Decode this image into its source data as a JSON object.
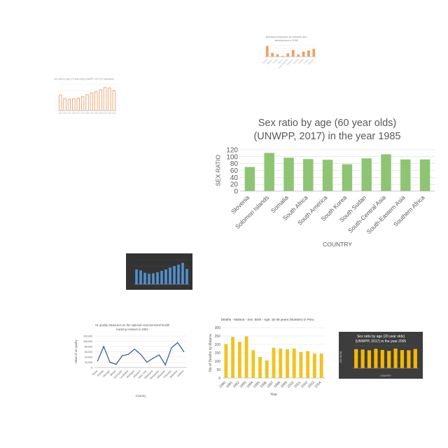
{
  "chart_data": [
    {
      "id": "main",
      "type": "bar",
      "title_lines": [
        "Sex ratio by age (60 year olds)",
        "(UNWPP, 2017) in the year 1985"
      ],
      "xlabel": "COUNTRY",
      "ylabel": "SEX RATIO",
      "ylim": [
        0,
        120
      ],
      "yticks": [
        "0",
        "20",
        "40",
        "60",
        "80",
        "100",
        "120"
      ],
      "grid": true,
      "bar_color": "#8dc572",
      "categories": [
        "Slovenia",
        "Solomon Islands",
        "Somalia",
        "South Africa",
        "South America",
        "South Korea",
        "South Sudan",
        "South-Central Asia",
        "South-Eastern Asia",
        "Southern Africa"
      ],
      "values": [
        70,
        111,
        97,
        93,
        91,
        78,
        95,
        107,
        92,
        92
      ]
    },
    {
      "id": "top-small",
      "type": "bar",
      "title_lines": [
        "Business enterprise on research and",
        "development in 2008"
      ],
      "bar_color": "#f0a060",
      "categories": [
        "Austria",
        "Belgium",
        "Croatia",
        "Cyprus",
        "Czech Republic",
        "Denmark",
        "Estonia",
        "Finland",
        "France",
        "Germany"
      ],
      "values": [
        95,
        35,
        22,
        8,
        30,
        60,
        20,
        45,
        55,
        70
      ],
      "ylim": [
        0,
        100
      ]
    },
    {
      "id": "left-small",
      "type": "bar",
      "title_lines": [
        "Sex ratio by age (70 year olds) (UNWPP, 2017) in Mauritania"
      ],
      "bar_color": "#ffffff",
      "bar_stroke": "#e8965a",
      "categories": [
        "1950",
        "1955",
        "1960",
        "1965",
        "1970",
        "1975",
        "1980",
        "1985",
        "1990",
        "1995",
        "2000",
        "2005",
        "2010"
      ],
      "values": [
        82,
        63,
        60,
        62,
        66,
        74,
        84,
        93,
        100,
        110,
        122,
        119,
        105
      ],
      "ylim": [
        0,
        140
      ]
    },
    {
      "id": "blue-dark",
      "type": "bar",
      "bar_color": "#4f90d0",
      "values": [
        62,
        58,
        48,
        44,
        46,
        50,
        56,
        62,
        70,
        76,
        82,
        90,
        64
      ],
      "ylim": [
        0,
        100
      ]
    },
    {
      "id": "air-quality",
      "type": "line",
      "title_lines": [
        "Air quality Measures on the national environmental health",
        "tracking network in 2004"
      ],
      "xlabel": "Country",
      "ylabel": "Value of air quality",
      "line_color": "#2f5597",
      "ylim": [
        0,
        120000
      ],
      "yticks": [
        "0",
        "20,000",
        "40,000",
        "60,000",
        "80,000",
        "100,000",
        "120,000"
      ],
      "categories": [
        "Texas",
        "Florida",
        "Georgia",
        "Illinois",
        "Kentucky",
        "Louisiana",
        "Michigan",
        "Missouri",
        "New York",
        "Oklahoma",
        "Tennessee",
        "Arkansas",
        "Colorado",
        "Alabama",
        "Indiana"
      ],
      "values": [
        25000,
        80000,
        20000,
        12000,
        45000,
        50000,
        70000,
        50000,
        20000,
        35000,
        48000,
        10000,
        75000,
        95000,
        60000
      ]
    },
    {
      "id": "malaria",
      "type": "bar",
      "title_lines": [
        "Deaths - Malaria - Sex: Both - Age: 15-49 years (Number) in Peru"
      ],
      "xlabel": "Year",
      "ylabel": "No of Deaths by Malaria",
      "bar_color": "#f2c31f",
      "ylim": [
        0,
        300
      ],
      "yticks": [
        "0",
        "50",
        "100",
        "150",
        "200",
        "250",
        "300"
      ],
      "categories": [
        "1990",
        "1991",
        "1992",
        "1993",
        "1994",
        "1995",
        "1996",
        "1997",
        "1998",
        "1999",
        "2000",
        "2001",
        "2002",
        "2003",
        "2004"
      ],
      "values": [
        202,
        245,
        215,
        248,
        165,
        125,
        105,
        180,
        175,
        170,
        175,
        155,
        160,
        145,
        145
      ]
    },
    {
      "id": "sex-ratio-2005",
      "type": "bar",
      "title_lines": [
        "Sex ratio by age (20 year olds)",
        "(UNWPP, 2017) in the year 2005"
      ],
      "xlabel": "COUNTRY",
      "ylabel": "SEX RATIO",
      "bar_color": "#f5b800",
      "ylim": [
        0,
        120
      ],
      "values": [
        102,
        100,
        96,
        104,
        98,
        93,
        105,
        97,
        96,
        103
      ],
      "categories": [
        "Singapore",
        "Slovakia",
        "Slovenia",
        "Solomon Islands",
        "Somalia",
        "South Africa",
        "South America",
        "South Korea",
        "South Sudan",
        "South-Central Asia"
      ]
    }
  ]
}
